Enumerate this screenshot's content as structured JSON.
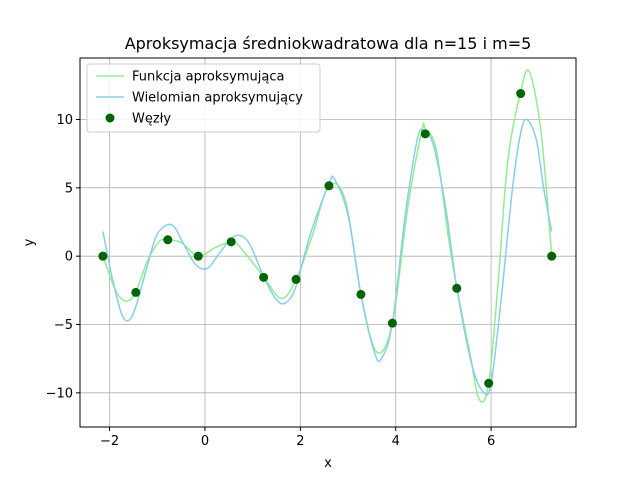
{
  "chart_data": {
    "type": "line",
    "title": "Aproksymacja średniokwadratowa dla n=15 i m=5",
    "xlabel": "x",
    "ylabel": "y",
    "xlim": [
      -2.62,
      7.78
    ],
    "ylim": [
      -12.5,
      14.5
    ],
    "xticks": [
      -2,
      0,
      2,
      4,
      6
    ],
    "yticks": [
      -10,
      -5,
      0,
      5,
      10
    ],
    "xtick_labels": [
      "−2",
      "0",
      "2",
      "4",
      "6"
    ],
    "ytick_labels": [
      "−10",
      "−5",
      "0",
      "5",
      "10"
    ],
    "grid": true,
    "legend_position": "upper-left",
    "series": [
      {
        "name": "Funkcja aproksymująca",
        "color": "#90ee90",
        "kind": "line",
        "x": [
          -2.14,
          -1.86,
          -1.64,
          -1.45,
          -1.2,
          -0.95,
          -0.78,
          -0.5,
          -0.14,
          0.2,
          0.55,
          0.75,
          1.23,
          1.6,
          1.91,
          2.25,
          2.6,
          2.95,
          3.27,
          3.6,
          3.93,
          4.25,
          4.55,
          4.62,
          4.85,
          5.1,
          5.28,
          5.55,
          5.75,
          5.95,
          6.15,
          6.35,
          6.62,
          6.8,
          7.05,
          7.27
        ],
        "y": [
          0,
          -2.6,
          -3.3,
          -2.6,
          -0.3,
          1.1,
          1.2,
          1.0,
          0,
          0.6,
          1.05,
          0.6,
          -1.5,
          -3.1,
          -1.7,
          1.5,
          5.15,
          4.0,
          -2.8,
          -7.0,
          -4.9,
          3.5,
          9.2,
          9.3,
          7.8,
          1.5,
          -2.3,
          -7.0,
          -10.5,
          -9.3,
          -1.8,
          7.0,
          12.0,
          13.5,
          9.0,
          0
        ]
      },
      {
        "name": "Wielomian aproksymujący",
        "color": "#87ceeb",
        "kind": "line",
        "x": [
          -2.14,
          -1.95,
          -1.75,
          -1.6,
          -1.45,
          -1.2,
          -1.0,
          -0.7,
          -0.45,
          -0.2,
          0.05,
          0.3,
          0.55,
          0.75,
          0.95,
          1.23,
          1.5,
          1.7,
          1.91,
          2.2,
          2.6,
          2.72,
          3.0,
          3.27,
          3.55,
          3.7,
          3.93,
          4.2,
          4.45,
          4.6,
          4.8,
          5.05,
          5.28,
          5.6,
          5.85,
          6.0,
          6.2,
          6.45,
          6.62,
          6.75,
          6.95,
          7.1,
          7.27
        ],
        "y": [
          1.8,
          -1.5,
          -4.2,
          -4.7,
          -3.7,
          -0.6,
          1.6,
          2.3,
          0.9,
          -0.6,
          -0.9,
          0.2,
          1.3,
          1.5,
          0.8,
          -1.5,
          -3.2,
          -3.4,
          -2.2,
          1.5,
          5.3,
          5.6,
          3.0,
          -2.8,
          -7.0,
          -7.5,
          -4.9,
          3.0,
          8.5,
          9.2,
          8.0,
          3.5,
          -2.3,
          -8.0,
          -10.0,
          -9.3,
          -3.5,
          5.0,
          9.0,
          10.0,
          8.5,
          5.0,
          1.8
        ]
      },
      {
        "name": "Węzły",
        "color": "#006400",
        "kind": "markers",
        "x": [
          -2.14,
          -1.45,
          -0.78,
          -0.14,
          0.55,
          1.23,
          1.91,
          2.6,
          3.27,
          3.93,
          4.62,
          5.28,
          5.95,
          6.62,
          7.27
        ],
        "y": [
          0,
          -2.65,
          1.2,
          0,
          1.05,
          -1.55,
          -1.7,
          5.15,
          -2.8,
          -4.9,
          8.95,
          -2.35,
          -9.3,
          11.9,
          0
        ]
      }
    ]
  }
}
